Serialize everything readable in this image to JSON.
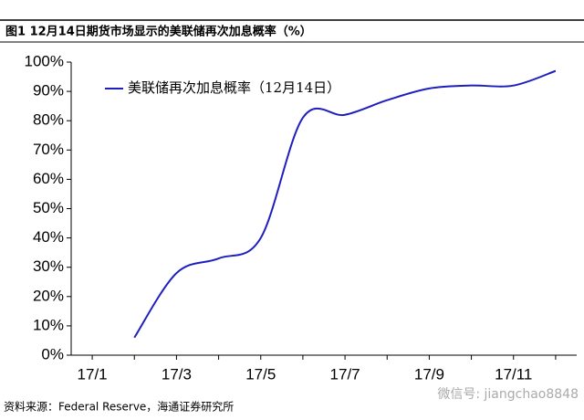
{
  "chart_data": {
    "type": "line",
    "title": "图1  12月14日期货市场显示的美联储再次加息概率（%）",
    "categories": [
      "17/1",
      null,
      "17/3",
      null,
      "17/5",
      null,
      "17/7",
      null,
      "17/9",
      null,
      "17/11",
      null
    ],
    "series": [
      {
        "name": "美联储再次加息概率（12月14日）",
        "color": "#1f1fbf",
        "values": [
          null,
          6,
          28,
          33,
          40,
          81,
          82,
          87,
          91,
          92,
          92,
          97
        ]
      }
    ],
    "ylim": [
      0,
      100
    ],
    "yticks": [
      {
        "value": 0,
        "label": "0%"
      },
      {
        "value": 10,
        "label": "10%"
      },
      {
        "value": 20,
        "label": "20%"
      },
      {
        "value": 30,
        "label": "30%"
      },
      {
        "value": 40,
        "label": "40%"
      },
      {
        "value": 50,
        "label": "50%"
      },
      {
        "value": 60,
        "label": "60%"
      },
      {
        "value": 70,
        "label": "70%"
      },
      {
        "value": 80,
        "label": "80%"
      },
      {
        "value": 90,
        "label": "90%"
      },
      {
        "value": 100,
        "label": "100%"
      }
    ],
    "source": "资料来源：Federal Reserve，海通证券研究所",
    "watermark": "微信号: jiangchao8848"
  }
}
